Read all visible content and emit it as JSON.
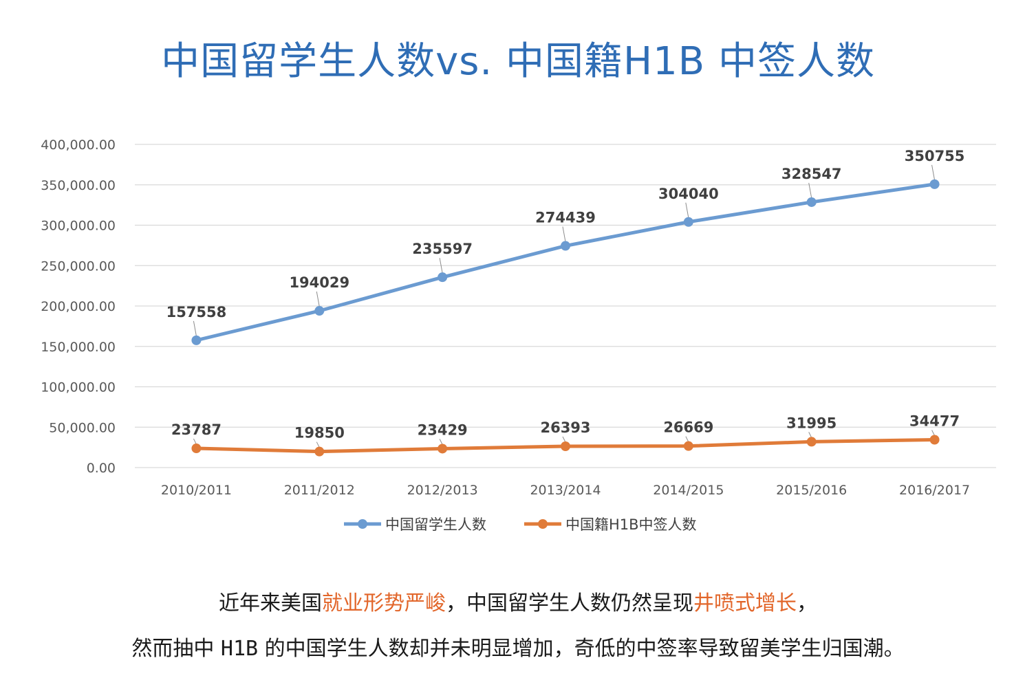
{
  "title": "中国留学生人数vs. 中国籍H1B 中签人数",
  "chart_data": {
    "type": "line",
    "categories": [
      "2010/2011",
      "2011/2012",
      "2012/2013",
      "2013/2014",
      "2014/2015",
      "2015/2016",
      "2016/2017"
    ],
    "series": [
      {
        "name": "中国留学生人数",
        "color": "#6b9bd1",
        "values": [
          157558,
          194029,
          235597,
          274439,
          304040,
          328547,
          350755
        ],
        "labels": [
          "157558",
          "194029",
          "235597",
          "274439",
          "304040",
          "328547",
          "350755"
        ]
      },
      {
        "name": "中国籍H1B中签人数",
        "color": "#e07b39",
        "values": [
          23787,
          19850,
          23429,
          26393,
          26669,
          31995,
          34477
        ],
        "labels": [
          "23787",
          "19850",
          "23429",
          "26393",
          "26669",
          "31995",
          "34477"
        ]
      }
    ],
    "yticks": [
      0,
      50000,
      100000,
      150000,
      200000,
      250000,
      300000,
      350000,
      400000
    ],
    "ytick_labels": [
      "0.00",
      "50,000.00",
      "100,000.00",
      "150,000.00",
      "200,000.00",
      "250,000.00",
      "300,000.00",
      "350,000.00",
      "400,000.00"
    ],
    "ylim": [
      0,
      400000
    ],
    "grid": true,
    "legend": "bottom-center"
  },
  "caption": {
    "line1": {
      "a": "近年来美国",
      "b": "就业形势严峻",
      "c": "，中国留学生人数仍然呈现",
      "d": "井喷式增长",
      "e": "，"
    },
    "line2": {
      "a": "然而抽中 ",
      "b": "H1B",
      "c": " 的中国学生人数却并未明显增加，奇低的中签率导致留美学生归国潮。"
    }
  }
}
